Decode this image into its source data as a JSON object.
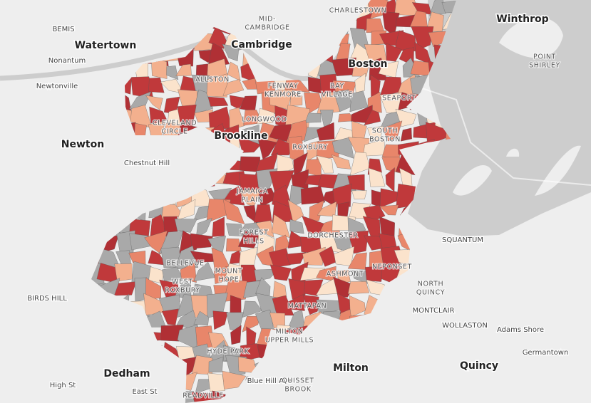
{
  "towns": [
    "Watertown",
    "Cambridge",
    "Boston",
    "Winthrop",
    "Newton",
    "Brookline",
    "Dedham",
    "Milton",
    "Quincy"
  ],
  "places": [
    "BEMIS",
    "Nonantum",
    "Newtonville",
    "Chestnut Hill",
    "BIRDS HILL",
    "Adams Shore",
    "Germantown",
    "WOLLASTON",
    "MONTCLAIR",
    "SQUANTUM",
    "High St",
    "Blue Hill Ave",
    "East St"
  ],
  "neighborhoods": [
    [
      "MID-",
      "CAMBRIDGE"
    ],
    [
      "CHARLESTOWN"
    ],
    [
      "ALLSTON"
    ],
    [
      "FENWAY",
      "KENMORE"
    ],
    [
      "BAY",
      "VILLAGE"
    ],
    [
      "SEAPORT"
    ],
    [
      "LONGWOOD"
    ],
    [
      "CLEVELAND",
      "CIRCLE"
    ],
    [
      "SOUTH",
      "BOSTON"
    ],
    [
      "ROXBURY"
    ],
    [
      "JAMAICA",
      "PLAIN"
    ],
    [
      "FOREST",
      "HILLS"
    ],
    [
      "DORCHESTER"
    ],
    [
      "BELLEVUE"
    ],
    [
      "MOUNT",
      "HOPE"
    ],
    [
      "WEST",
      "ROXBURY"
    ],
    [
      "ASHMONT"
    ],
    [
      "NEPONSET"
    ],
    [
      "NORTH",
      "QUINCY"
    ],
    [
      "MATTAPAN"
    ],
    [
      "MILTON",
      "UPPER MILLS"
    ],
    [
      "HYDE PARK"
    ],
    [
      "QUISSET",
      "BROOK"
    ],
    [
      "READVILLE"
    ],
    [
      "POINT",
      "SHIRLEY"
    ]
  ]
}
